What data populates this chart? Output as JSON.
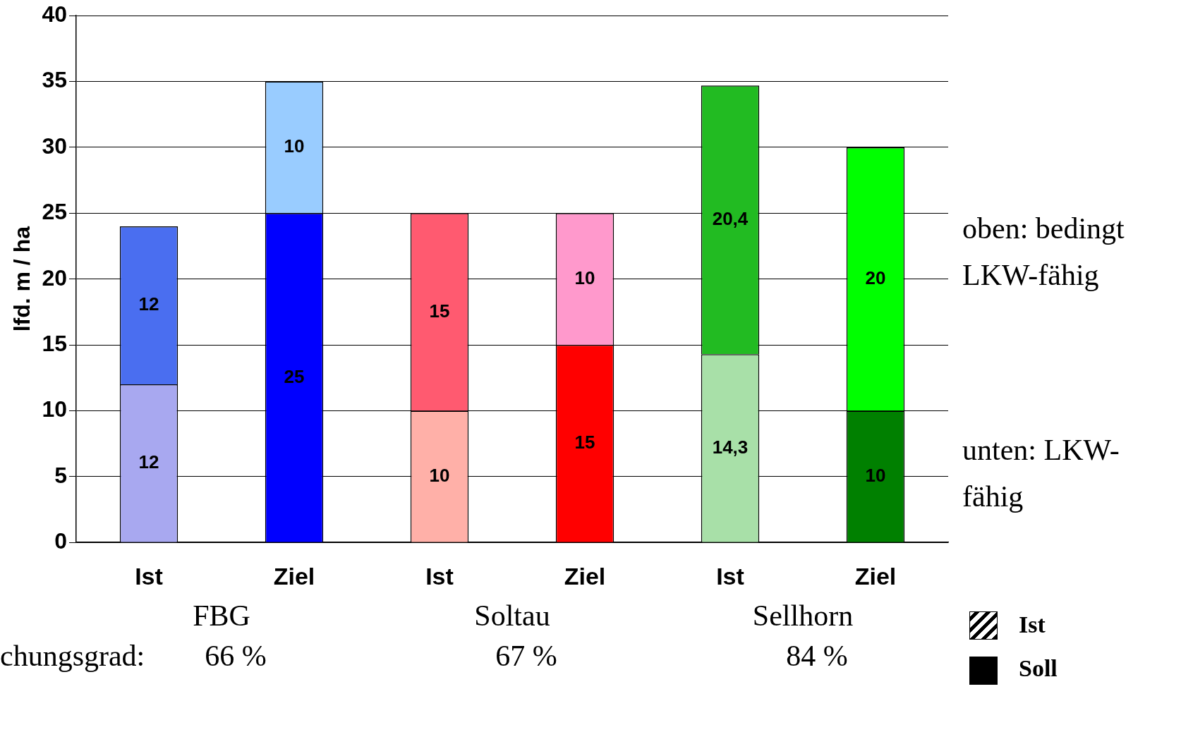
{
  "chart_data": {
    "type": "bar",
    "stacked": true,
    "ylabel": "lfd. m / ha",
    "categories": [
      "Ist",
      "Ziel",
      "Ist",
      "Ziel",
      "Ist",
      "Ziel"
    ],
    "series": [
      {
        "colors": [
          "#a8a8f0",
          "#0000ff",
          "#ffb0a8",
          "#ff0000",
          "#a8e0a8",
          "#008000"
        ],
        "values": [
          12,
          25,
          10,
          15,
          14.3,
          10
        ],
        "value_labels": [
          "12",
          "25",
          "10",
          "15",
          "14,3",
          "10"
        ]
      },
      {
        "colors": [
          "#4a6ef0",
          "#99ccff",
          "#ff5a70",
          "#ff99cc",
          "#22bb22",
          "#00ff00"
        ],
        "values": [
          12,
          10,
          15,
          10,
          20.4,
          20
        ],
        "value_labels": [
          "12",
          "10",
          "15",
          "10",
          "20,4",
          "20"
        ]
      }
    ],
    "ylim": [
      0,
      40
    ],
    "yticks": [
      0,
      5,
      10,
      15,
      20,
      25,
      30,
      35,
      40
    ],
    "grid": "y",
    "legend": false,
    "annotations": [
      "FBG",
      "Soltau",
      "Sellhorn",
      "chungsgrad:",
      "66 %",
      "67 %",
      "84 %",
      "oben: bedingt LKW-fähig",
      "unten: LKW-fähig",
      "Ist",
      "Soll"
    ]
  }
}
